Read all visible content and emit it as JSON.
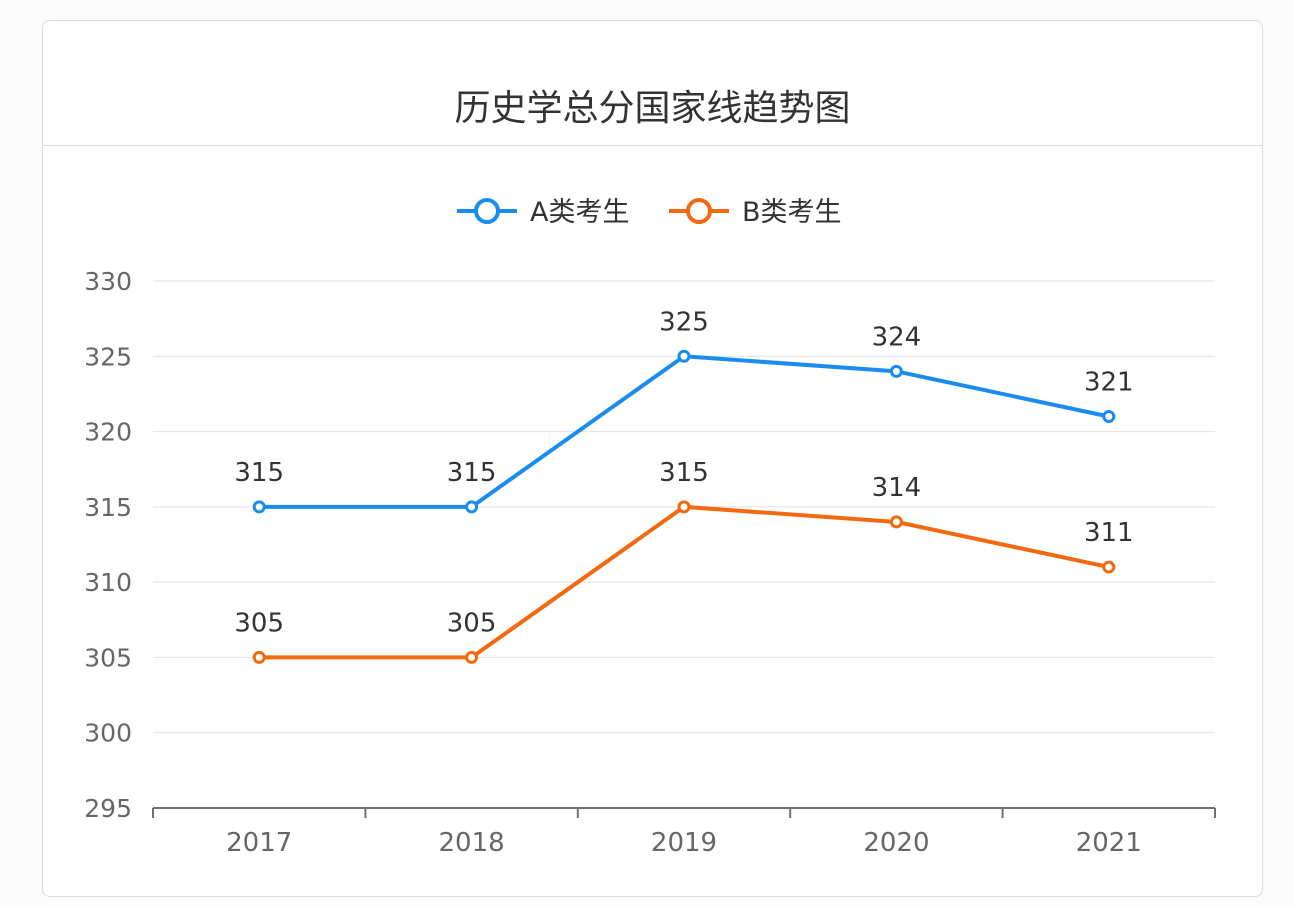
{
  "chart_data": {
    "type": "line",
    "title": "历史学总分国家线趋势图",
    "categories": [
      "2017",
      "2018",
      "2019",
      "2020",
      "2021"
    ],
    "series": [
      {
        "name": "A类考生",
        "values": [
          315,
          315,
          325,
          324,
          321
        ],
        "color": "#1a8cf0"
      },
      {
        "name": "B类考生",
        "values": [
          305,
          305,
          315,
          314,
          311
        ],
        "color": "#f2690f"
      }
    ],
    "ylim": [
      295,
      330
    ],
    "yticks": [
      295,
      300,
      305,
      310,
      315,
      320,
      325,
      330
    ],
    "grid": true,
    "legend": "top-center",
    "data_labels": true
  }
}
